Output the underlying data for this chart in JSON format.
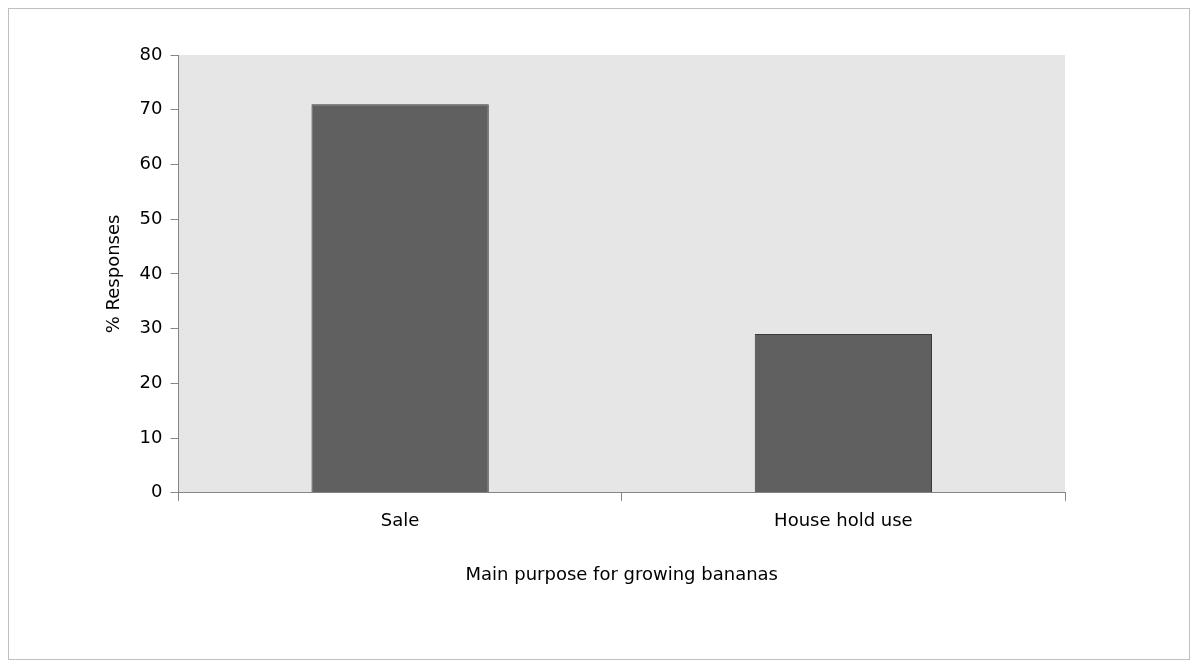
{
  "chart_data": {
    "type": "bar",
    "xlabel": "Main purpose for growing bananas",
    "ylabel": "% Responses",
    "categories": [
      "Sale",
      "House hold use"
    ],
    "values": [
      71,
      29
    ],
    "color": "#606060",
    "ylim": [
      0,
      80
    ],
    "yticks": [
      0,
      10,
      20,
      30,
      40,
      50,
      60,
      70,
      80
    ],
    "grid": false,
    "legend": false
  }
}
